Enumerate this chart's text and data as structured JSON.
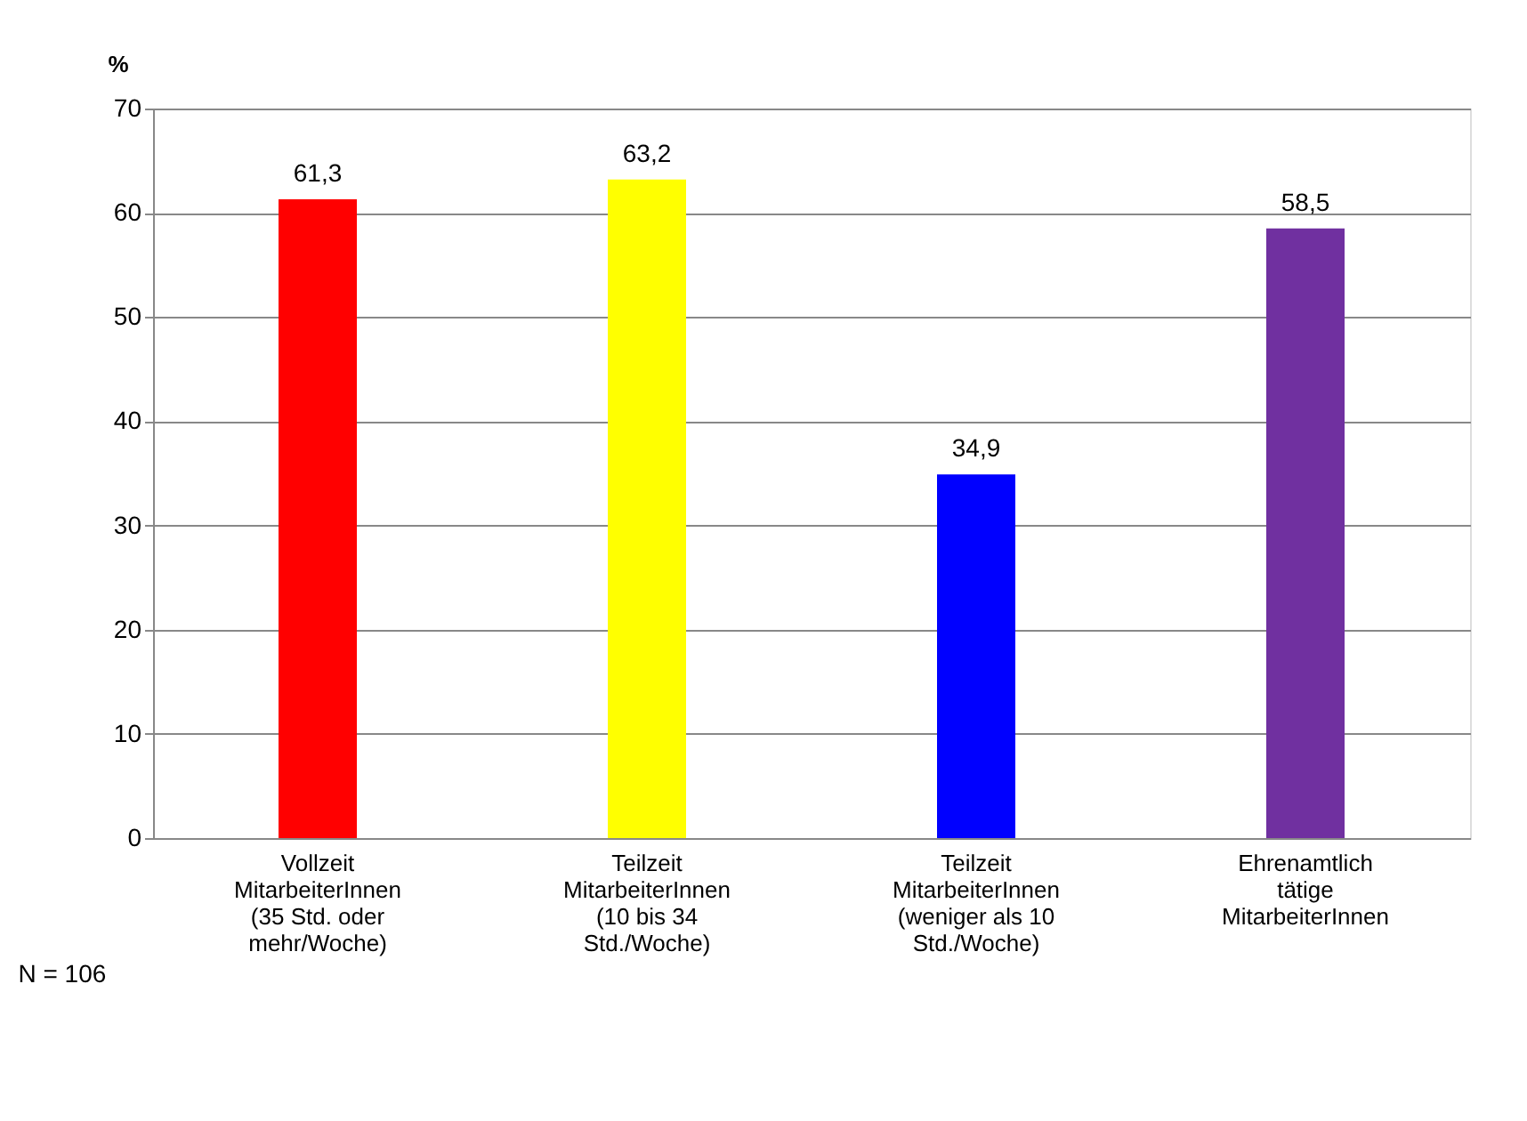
{
  "chart_data": {
    "type": "bar",
    "ylabel": "%",
    "categories": [
      "Vollzeit\nMitarbeiterInnen\n(35 Std. oder\nmehr/Woche)",
      "Teilzeit\nMitarbeiterInnen\n(10 bis 34\nStd./Woche)",
      "Teilzeit\nMitarbeiterInnen\n(weniger als 10\nStd./Woche)",
      "Ehrenamtlich\ntätige\nMitarbeiterInnen"
    ],
    "values": [
      61.3,
      63.2,
      34.9,
      58.5
    ],
    "colors": [
      "#ff0000",
      "#ffff00",
      "#0000ff",
      "#7030a0"
    ],
    "value_labels": [
      "61,3",
      "63,2",
      "34,9",
      "58,5"
    ],
    "ylim": [
      0,
      70
    ],
    "yticks": [
      0,
      10,
      20,
      30,
      40,
      50,
      60,
      70
    ],
    "grid": "y",
    "annotations": [
      "N = 106"
    ]
  }
}
